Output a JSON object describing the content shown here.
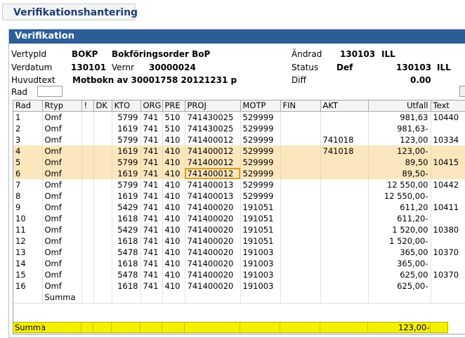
{
  "tab": {
    "title": "Verifikationshantering"
  },
  "panel": {
    "title": "Verifikation"
  },
  "header": {
    "vertypid_label": "VertypId",
    "vertypid_value": "BOKP",
    "vertypid_desc": "Bokföringsorder BoP",
    "verdatum_label": "Verdatum",
    "verdatum_value": "130101",
    "vernr_label": "Vernr",
    "vernr_value": "30000024",
    "huvudtext_label": "Huvudtext",
    "huvudtext_value": "Motbokn av 30001758 20121231 p",
    "andrad_label": "Ändrad",
    "andrad_date": "130103",
    "andrad_user": "ILL",
    "status_label": "Status",
    "status_value": "Def",
    "status_date": "130103",
    "status_user": "ILL",
    "diff_label": "Diff",
    "diff_value": "0.00"
  },
  "rad_label": "Rad",
  "rad_input_value": "",
  "grid": {
    "columns": [
      "Rad",
      "Rtyp",
      "!",
      "DK",
      "KTO",
      "ORG",
      "PRE",
      "PROJ",
      "MOTP",
      "FIN",
      "AKT",
      "Utfall",
      "Text"
    ],
    "rows": [
      [
        "1",
        "Omf",
        "",
        "",
        "5799",
        "741",
        "510",
        "741430025",
        "529999",
        "",
        "",
        "981,63",
        "10440"
      ],
      [
        "2",
        "Omf",
        "",
        "",
        "1619",
        "741",
        "510",
        "741430025",
        "529999",
        "",
        "",
        "981,63-",
        ""
      ],
      [
        "3",
        "Omf",
        "",
        "",
        "5799",
        "741",
        "410",
        "741400012",
        "529999",
        "",
        "741018",
        "123,00",
        "10334"
      ],
      [
        "4",
        "Omf",
        "",
        "",
        "1619",
        "741",
        "410",
        "741400012",
        "529999",
        "",
        "741018",
        "123,00-",
        ""
      ],
      [
        "5",
        "Omf",
        "",
        "",
        "5799",
        "741",
        "410",
        "741400012",
        "529999",
        "",
        "",
        "89,50",
        "10415"
      ],
      [
        "6",
        "Omf",
        "",
        "",
        "1619",
        "741",
        "410",
        "741400012",
        "529999",
        "",
        "",
        "89,50-",
        ""
      ],
      [
        "7",
        "Omf",
        "",
        "",
        "5799",
        "741",
        "410",
        "741400013",
        "529999",
        "",
        "",
        "12 550,00",
        "10442"
      ],
      [
        "8",
        "Omf",
        "",
        "",
        "1619",
        "741",
        "410",
        "741400013",
        "529999",
        "",
        "",
        "12 550,00-",
        ""
      ],
      [
        "9",
        "Omf",
        "",
        "",
        "5429",
        "741",
        "410",
        "741400020",
        "191051",
        "",
        "",
        "611,20",
        "10411"
      ],
      [
        "10",
        "Omf",
        "",
        "",
        "1618",
        "741",
        "410",
        "741400020",
        "191051",
        "",
        "",
        "611,20-",
        ""
      ],
      [
        "11",
        "Omf",
        "",
        "",
        "5429",
        "741",
        "410",
        "741400020",
        "191051",
        "",
        "",
        "1 520,00",
        "10380"
      ],
      [
        "12",
        "Omf",
        "",
        "",
        "1618",
        "741",
        "410",
        "741400020",
        "191051",
        "",
        "",
        "1 520,00-",
        ""
      ],
      [
        "13",
        "Omf",
        "",
        "",
        "5478",
        "741",
        "410",
        "741400020",
        "191003",
        "",
        "",
        "365,00",
        "10370"
      ],
      [
        "14",
        "Omf",
        "",
        "",
        "1618",
        "741",
        "410",
        "741400020",
        "191003",
        "",
        "",
        "365,00-",
        ""
      ],
      [
        "15",
        "Omf",
        "",
        "",
        "5478",
        "741",
        "410",
        "741400020",
        "191003",
        "",
        "",
        "625,00",
        "10370"
      ],
      [
        "16",
        "Omf",
        "",
        "",
        "1618",
        "741",
        "410",
        "741400020",
        "191003",
        "",
        "",
        "625,00-",
        ""
      ]
    ],
    "highlighted_rows": [
      4,
      5,
      6
    ],
    "selected_row": 6,
    "selected_column": 7,
    "summa_label": "Summa"
  },
  "footer": {
    "summa_label": "Summa",
    "utfall_total": "123,00-"
  },
  "colors": {
    "panel_header": "#2c5d97",
    "highlight_row": "#fbe6bd",
    "footer_bar": "#f5f000",
    "selected_cell_border": "#d4a020"
  }
}
